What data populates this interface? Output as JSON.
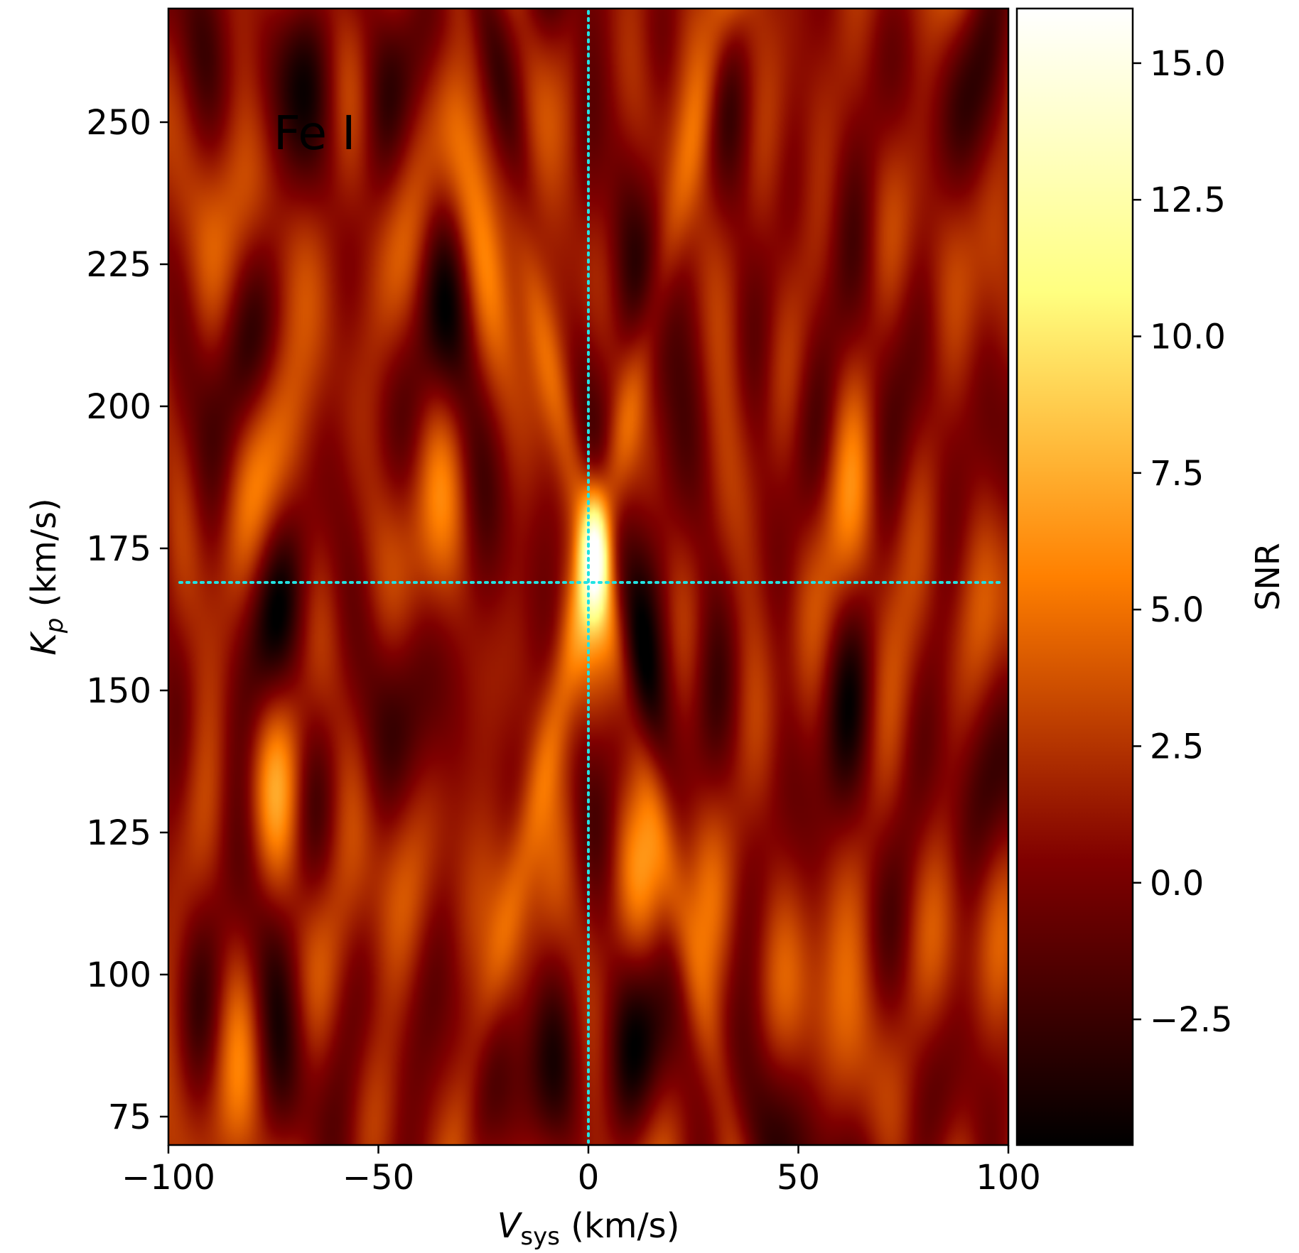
{
  "chart_data": {
    "type": "heatmap",
    "title": "",
    "label": "Fe I",
    "label_color": "#22e3e3",
    "xlabel": {
      "main": "V",
      "sub": "sys",
      "unit": " (km/s)"
    },
    "ylabel": {
      "main": "K",
      "sub": "p",
      "unit": " (km/s)"
    },
    "xlim": [
      -100,
      100
    ],
    "ylim": [
      70,
      270
    ],
    "x_ticks": [
      {
        "value": -100,
        "label": "−100"
      },
      {
        "value": -50,
        "label": "−50"
      },
      {
        "value": 0,
        "label": "0"
      },
      {
        "value": 50,
        "label": "50"
      },
      {
        "value": 100,
        "label": "100"
      }
    ],
    "y_ticks": [
      {
        "value": 75,
        "label": "75"
      },
      {
        "value": 100,
        "label": "100"
      },
      {
        "value": 125,
        "label": "125"
      },
      {
        "value": 150,
        "label": "150"
      },
      {
        "value": 175,
        "label": "175"
      },
      {
        "value": 200,
        "label": "200"
      },
      {
        "value": 225,
        "label": "225"
      },
      {
        "value": 250,
        "label": "250"
      }
    ],
    "colorbar": {
      "label": "SNR",
      "range": [
        -4.8,
        16.0
      ],
      "ticks": [
        {
          "value": -2.5,
          "label": "−2.5"
        },
        {
          "value": 0.0,
          "label": "0.0"
        },
        {
          "value": 2.5,
          "label": "2.5"
        },
        {
          "value": 5.0,
          "label": "5.0"
        },
        {
          "value": 7.5,
          "label": "7.5"
        },
        {
          "value": 10.0,
          "label": "10.0"
        },
        {
          "value": 12.5,
          "label": "12.5"
        },
        {
          "value": 15.0,
          "label": "15.0"
        }
      ],
      "colormap": "afmhot"
    },
    "peak": {
      "vsys": 1.5,
      "kp": 174,
      "snr": 15.5
    },
    "reference_lines": {
      "vsys": 0,
      "kp": 169,
      "color": "#22e3e3",
      "style": "dotted"
    }
  }
}
